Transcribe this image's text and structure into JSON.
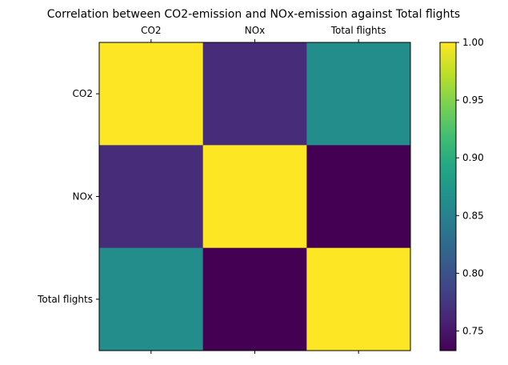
{
  "chart_data": {
    "type": "heatmap",
    "title": "Correlation between CO2-emission and NOx-emission against Total flights",
    "x_categories": [
      "CO2",
      "NOx",
      "Total flights"
    ],
    "y_categories": [
      "CO2",
      "NOx",
      "Total flights"
    ],
    "x_axis_position": "top",
    "values": [
      [
        1.0,
        0.766,
        0.862
      ],
      [
        0.766,
        1.0,
        0.733
      ],
      [
        0.862,
        0.733,
        1.0
      ]
    ],
    "colormap": "viridis",
    "colorbar": {
      "range": [
        0.733,
        1.0
      ],
      "ticks": [
        0.75,
        0.8,
        0.85,
        0.9,
        0.95,
        1.0
      ],
      "tick_labels": [
        "0.75",
        "0.80",
        "0.85",
        "0.90",
        "0.95",
        "1.00"
      ],
      "placement": "right"
    },
    "grid": false
  }
}
